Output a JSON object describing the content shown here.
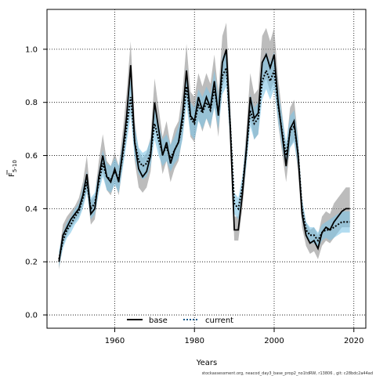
{
  "chart_data": {
    "type": "line",
    "title": "",
    "xlabel": "Years",
    "ylabel_main": "F",
    "ylabel_sub": "5-10",
    "xlim": [
      1943,
      2023
    ],
    "ylim": [
      -0.05,
      1.15
    ],
    "xticks": [
      1960,
      1980,
      2000,
      2020
    ],
    "xtick_labels": [
      "1960",
      "1980",
      "2000",
      "2020"
    ],
    "yticks": [
      0.0,
      0.2,
      0.4,
      0.6,
      0.8,
      1.0
    ],
    "ytick_labels": [
      "0.0",
      "0.2",
      "0.4",
      "0.6",
      "0.8",
      "1.0"
    ],
    "grid": true,
    "legend_position": "bottom-center",
    "x": [
      1946,
      1947,
      1948,
      1949,
      1950,
      1951,
      1952,
      1953,
      1954,
      1955,
      1956,
      1957,
      1958,
      1959,
      1960,
      1961,
      1962,
      1963,
      1964,
      1965,
      1966,
      1967,
      1968,
      1969,
      1970,
      1971,
      1972,
      1973,
      1974,
      1975,
      1976,
      1977,
      1978,
      1979,
      1980,
      1981,
      1982,
      1983,
      1984,
      1985,
      1986,
      1987,
      1988,
      1989,
      1990,
      1991,
      1992,
      1993,
      1994,
      1995,
      1996,
      1997,
      1998,
      1999,
      2000,
      2001,
      2002,
      2003,
      2004,
      2005,
      2006,
      2007,
      2008,
      2009,
      2010,
      2011,
      2012,
      2013,
      2014,
      2015,
      2016,
      2017,
      2018,
      2019
    ],
    "series": [
      {
        "name": "base",
        "color": "#000000",
        "band_color": "#909090",
        "values": [
          0.2,
          0.3,
          0.33,
          0.36,
          0.38,
          0.4,
          0.45,
          0.53,
          0.38,
          0.4,
          0.52,
          0.6,
          0.52,
          0.5,
          0.55,
          0.5,
          0.62,
          0.75,
          0.94,
          0.65,
          0.55,
          0.52,
          0.54,
          0.6,
          0.8,
          0.7,
          0.6,
          0.65,
          0.57,
          0.62,
          0.65,
          0.75,
          0.92,
          0.75,
          0.73,
          0.82,
          0.77,
          0.82,
          0.78,
          0.88,
          0.75,
          0.95,
          1.0,
          0.7,
          0.32,
          0.32,
          0.45,
          0.62,
          0.82,
          0.74,
          0.76,
          0.95,
          0.98,
          0.93,
          0.98,
          0.8,
          0.68,
          0.56,
          0.7,
          0.73,
          0.6,
          0.38,
          0.3,
          0.27,
          0.28,
          0.25,
          0.31,
          0.33,
          0.32,
          0.35,
          0.37,
          0.39,
          0.4,
          0.4
        ],
        "lower": [
          0.17,
          0.26,
          0.3,
          0.33,
          0.35,
          0.37,
          0.41,
          0.47,
          0.34,
          0.36,
          0.47,
          0.54,
          0.47,
          0.45,
          0.5,
          0.45,
          0.56,
          0.67,
          0.85,
          0.58,
          0.48,
          0.46,
          0.48,
          0.54,
          0.72,
          0.63,
          0.53,
          0.58,
          0.5,
          0.55,
          0.58,
          0.67,
          0.83,
          0.67,
          0.65,
          0.74,
          0.69,
          0.74,
          0.7,
          0.79,
          0.67,
          0.86,
          0.9,
          0.62,
          0.28,
          0.28,
          0.4,
          0.56,
          0.74,
          0.66,
          0.68,
          0.86,
          0.89,
          0.84,
          0.88,
          0.72,
          0.61,
          0.5,
          0.63,
          0.66,
          0.54,
          0.33,
          0.26,
          0.23,
          0.24,
          0.21,
          0.26,
          0.28,
          0.27,
          0.29,
          0.31,
          0.33,
          0.33,
          0.33
        ],
        "upper": [
          0.23,
          0.34,
          0.37,
          0.39,
          0.41,
          0.44,
          0.5,
          0.6,
          0.43,
          0.45,
          0.58,
          0.68,
          0.58,
          0.56,
          0.61,
          0.56,
          0.69,
          0.84,
          1.03,
          0.73,
          0.62,
          0.59,
          0.61,
          0.67,
          0.89,
          0.78,
          0.67,
          0.73,
          0.64,
          0.7,
          0.73,
          0.84,
          1.02,
          0.84,
          0.82,
          0.91,
          0.86,
          0.91,
          0.87,
          0.98,
          0.84,
          1.05,
          1.1,
          0.79,
          0.37,
          0.37,
          0.51,
          0.69,
          0.91,
          0.83,
          0.85,
          1.05,
          1.08,
          1.03,
          1.08,
          0.89,
          0.76,
          0.63,
          0.78,
          0.81,
          0.67,
          0.43,
          0.35,
          0.32,
          0.33,
          0.3,
          0.37,
          0.39,
          0.38,
          0.42,
          0.44,
          0.46,
          0.48,
          0.48
        ]
      },
      {
        "name": "current",
        "color": "#1a5a8a",
        "band_color": "#7fc4e6",
        "values": [
          0.21,
          0.28,
          0.32,
          0.34,
          0.37,
          0.39,
          0.44,
          0.5,
          0.4,
          0.42,
          0.5,
          0.57,
          0.52,
          0.51,
          0.54,
          0.51,
          0.6,
          0.71,
          0.82,
          0.65,
          0.58,
          0.56,
          0.57,
          0.61,
          0.72,
          0.66,
          0.61,
          0.63,
          0.59,
          0.62,
          0.65,
          0.72,
          0.86,
          0.74,
          0.72,
          0.79,
          0.76,
          0.8,
          0.77,
          0.85,
          0.76,
          0.9,
          0.93,
          0.71,
          0.42,
          0.4,
          0.48,
          0.61,
          0.77,
          0.72,
          0.74,
          0.88,
          0.92,
          0.88,
          0.92,
          0.79,
          0.69,
          0.6,
          0.69,
          0.71,
          0.61,
          0.4,
          0.32,
          0.3,
          0.3,
          0.28,
          0.31,
          0.32,
          0.32,
          0.33,
          0.34,
          0.35,
          0.35,
          0.35
        ],
        "lower": [
          0.18,
          0.25,
          0.29,
          0.31,
          0.34,
          0.36,
          0.4,
          0.46,
          0.36,
          0.38,
          0.46,
          0.52,
          0.47,
          0.46,
          0.49,
          0.46,
          0.55,
          0.65,
          0.75,
          0.59,
          0.53,
          0.51,
          0.52,
          0.56,
          0.66,
          0.6,
          0.56,
          0.58,
          0.54,
          0.57,
          0.59,
          0.66,
          0.79,
          0.68,
          0.66,
          0.73,
          0.7,
          0.74,
          0.71,
          0.78,
          0.7,
          0.83,
          0.86,
          0.65,
          0.38,
          0.36,
          0.44,
          0.56,
          0.71,
          0.66,
          0.68,
          0.81,
          0.85,
          0.81,
          0.85,
          0.73,
          0.63,
          0.55,
          0.63,
          0.65,
          0.56,
          0.36,
          0.29,
          0.27,
          0.27,
          0.25,
          0.28,
          0.29,
          0.28,
          0.29,
          0.3,
          0.31,
          0.31,
          0.31
        ],
        "upper": [
          0.24,
          0.31,
          0.35,
          0.37,
          0.4,
          0.42,
          0.48,
          0.54,
          0.44,
          0.46,
          0.54,
          0.62,
          0.57,
          0.56,
          0.59,
          0.56,
          0.65,
          0.77,
          0.89,
          0.71,
          0.63,
          0.61,
          0.62,
          0.66,
          0.78,
          0.72,
          0.66,
          0.68,
          0.64,
          0.67,
          0.71,
          0.78,
          0.93,
          0.8,
          0.78,
          0.85,
          0.82,
          0.86,
          0.83,
          0.92,
          0.82,
          0.97,
          1.0,
          0.77,
          0.46,
          0.44,
          0.52,
          0.66,
          0.83,
          0.78,
          0.8,
          0.95,
          0.99,
          0.95,
          0.99,
          0.85,
          0.75,
          0.65,
          0.75,
          0.77,
          0.66,
          0.44,
          0.35,
          0.33,
          0.33,
          0.31,
          0.34,
          0.35,
          0.36,
          0.37,
          0.38,
          0.39,
          0.39,
          0.39
        ]
      }
    ],
    "footnote": "stockassessment.org, neacod_day3_base_prop2_no1tdRW, r13806 , git: c28bdc2a44ad"
  }
}
